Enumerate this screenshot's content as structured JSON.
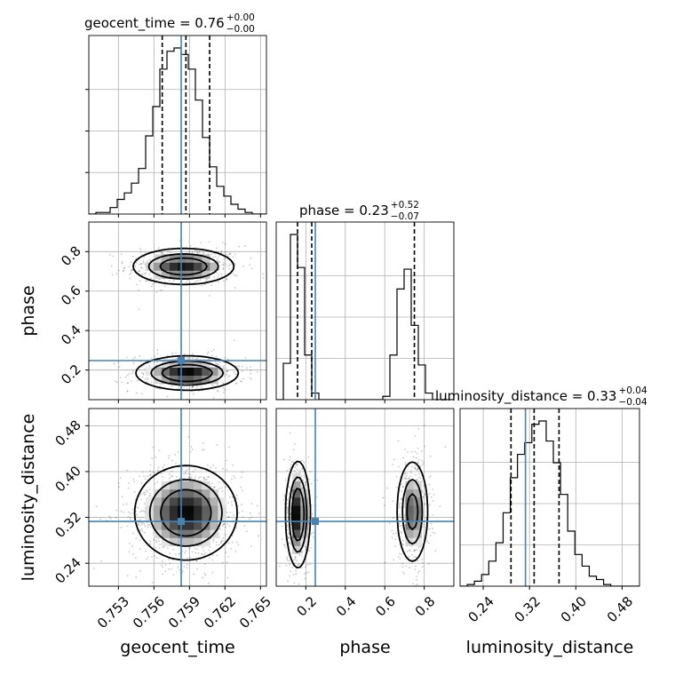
{
  "chart_data": {
    "type": "corner",
    "parameters": [
      "geocent_time",
      "phase",
      "luminosity_distance"
    ],
    "truths": {
      "geocent_time": 0.7583,
      "phase": 0.248,
      "luminosity_distance": 0.313
    },
    "titles": [
      {
        "param": "geocent_time",
        "text": "geocent_time = 0.76",
        "plus": "+0.00",
        "minus": "−0.00"
      },
      {
        "param": "phase",
        "text": "phase = 0.23",
        "plus": "+0.52",
        "minus": "−0.07"
      },
      {
        "param": "luminosity_distance",
        "text": "luminosity_distance = 0.33",
        "plus": "+0.04",
        "minus": "−0.04"
      }
    ],
    "axes": {
      "geocent_time": {
        "range": [
          0.7505,
          0.7655
        ],
        "ticks": [
          "0.753",
          "0.756",
          "0.759",
          "0.762",
          "0.765"
        ]
      },
      "phase": {
        "range": [
          0.05,
          0.95
        ],
        "ticks": [
          "0.2",
          "0.4",
          "0.6",
          "0.8"
        ]
      },
      "luminosity_distance": {
        "range": [
          0.2,
          0.51
        ],
        "ticks": [
          "0.24",
          "0.32",
          "0.40",
          "0.48"
        ]
      }
    },
    "histograms": {
      "geocent_time": {
        "bins": [
          0.7505,
          0.7511,
          0.7517,
          0.7523,
          0.7529,
          0.7535,
          0.7541,
          0.7547,
          0.7553,
          0.7559,
          0.7565,
          0.7571,
          0.7577,
          0.7583,
          0.7589,
          0.7595,
          0.7601,
          0.7607,
          0.7613,
          0.7619,
          0.7625,
          0.7631,
          0.7637,
          0.7643,
          0.7649,
          0.7655
        ],
        "counts": [
          0,
          1,
          1,
          4,
          9,
          13,
          19,
          28,
          48,
          66,
          89,
          100,
          102,
          98,
          89,
          70,
          47,
          29,
          17,
          11,
          6,
          3,
          1,
          0,
          0
        ],
        "quantiles": [
          0.7567,
          0.7587,
          0.7607
        ]
      },
      "phase": {
        "bins": [
          0.05,
          0.086,
          0.122,
          0.158,
          0.194,
          0.23,
          0.266,
          0.302,
          0.338,
          0.374,
          0.41,
          0.446,
          0.482,
          0.518,
          0.554,
          0.59,
          0.626,
          0.662,
          0.698,
          0.734,
          0.77,
          0.806,
          0.842,
          0.878,
          0.914,
          0.95
        ],
        "counts": [
          0,
          22,
          100,
          80,
          27,
          4,
          0,
          0,
          0,
          0,
          0,
          0,
          0,
          0,
          0,
          2,
          27,
          67,
          79,
          45,
          21,
          4,
          0,
          0,
          0
        ],
        "quantiles": [
          0.158,
          0.23,
          0.75
        ]
      },
      "luminosity_distance": {
        "bins": [
          0.2,
          0.2124,
          0.2248,
          0.2372,
          0.2496,
          0.262,
          0.2744,
          0.2868,
          0.2992,
          0.3116,
          0.324,
          0.3364,
          0.3488,
          0.3612,
          0.3736,
          0.386,
          0.3984,
          0.4108,
          0.4232,
          0.4356,
          0.448,
          0.4604,
          0.4728,
          0.4852,
          0.4976,
          0.51
        ],
        "counts": [
          0,
          1,
          3,
          7,
          15,
          26,
          44,
          65,
          79,
          86,
          97,
          99,
          87,
          74,
          55,
          33,
          19,
          12,
          6,
          4,
          1,
          0,
          0,
          0,
          0
        ],
        "quantiles": [
          0.288,
          0.328,
          0.371
        ]
      }
    },
    "joint": [
      {
        "x": "geocent_time",
        "y": "phase",
        "modes": [
          {
            "cx": 0.7585,
            "cy": 0.725,
            "sx": 0.0021,
            "sy": 0.045,
            "w": 0.5
          },
          {
            "cx": 0.7588,
            "cy": 0.185,
            "sx": 0.0021,
            "sy": 0.042,
            "w": 0.5
          }
        ]
      },
      {
        "x": "geocent_time",
        "y": "luminosity_distance",
        "modes": [
          {
            "cx": 0.7587,
            "cy": 0.328,
            "sx": 0.0021,
            "sy": 0.04,
            "w": 1
          }
        ]
      },
      {
        "x": "phase",
        "y": "luminosity_distance",
        "modes": [
          {
            "cx": 0.16,
            "cy": 0.325,
            "sx": 0.03,
            "sy": 0.045,
            "w": 0.5
          },
          {
            "cx": 0.74,
            "cy": 0.33,
            "sx": 0.04,
            "sy": 0.045,
            "w": 0.5
          }
        ]
      }
    ],
    "truth_color": "#4682b4",
    "grid": true
  }
}
